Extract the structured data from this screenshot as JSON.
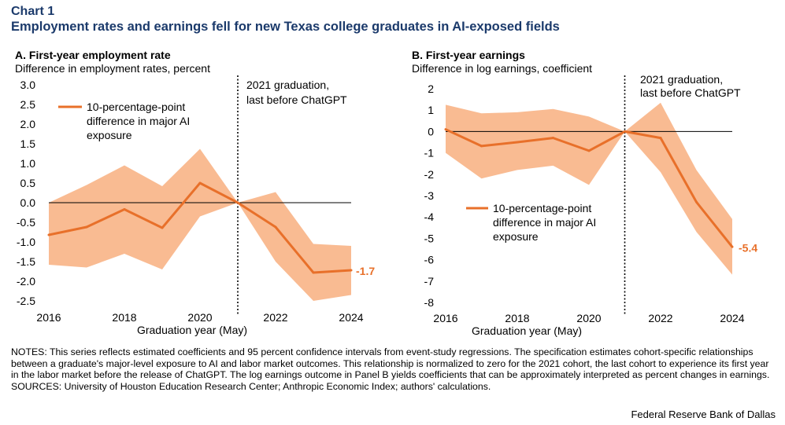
{
  "header": {
    "label": "Chart 1",
    "title": "Employment rates and earnings fell for new Texas college graduates in AI-exposed fields"
  },
  "chart_data": [
    {
      "type": "line",
      "panel_title": "A. First-year employment rate",
      "ylabel": "Difference in employment rates, percent",
      "xlabel": "Graduation year (May)",
      "x": [
        2016,
        2017,
        2018,
        2019,
        2020,
        2021,
        2022,
        2023,
        2024
      ],
      "xticks": [
        "2016",
        "2018",
        "2020",
        "2022",
        "2024"
      ],
      "yticks": [
        "3.0",
        "2.5",
        "2.0",
        "1.5",
        "1.0",
        "0.5",
        "0.0",
        "-0.5",
        "-1.0",
        "-1.5",
        "-2.0",
        "-2.5"
      ],
      "ylim": [
        -2.5,
        3.0
      ],
      "series": [
        {
          "name": "10-percentage-point difference in major AI exposure",
          "color": "#e8702a",
          "values": [
            -0.82,
            -0.62,
            -0.17,
            -0.64,
            0.5,
            0.0,
            -0.62,
            -1.78,
            -1.72
          ],
          "ci_low": [
            -1.58,
            -1.65,
            -1.3,
            -1.7,
            -0.35,
            0.0,
            -1.5,
            -2.5,
            -2.35
          ],
          "ci_high": [
            0.0,
            0.45,
            0.95,
            0.42,
            1.37,
            0.0,
            0.27,
            -1.05,
            -1.1
          ]
        }
      ],
      "band_color": "#f9bb92",
      "end_label": "-1.7",
      "vline": {
        "x": 2021,
        "label_line1": "2021 graduation,",
        "label_line2": "last before ChatGPT"
      },
      "legend": {
        "line1": "10-percentage-point",
        "line2": "difference in major AI",
        "line3": "exposure"
      }
    },
    {
      "type": "line",
      "panel_title": "B. First-year earnings",
      "ylabel": "Difference in log earnings, coefficient",
      "xlabel": "Graduation year (May)",
      "x": [
        2016,
        2017,
        2018,
        2019,
        2020,
        2021,
        2022,
        2023,
        2024
      ],
      "xticks": [
        "2016",
        "2018",
        "2020",
        "2022",
        "2024"
      ],
      "yticks": [
        "2",
        "1",
        "0",
        "-1",
        "-2",
        "-3",
        "-4",
        "-5",
        "-6",
        "-7",
        "-8"
      ],
      "ylim": [
        -8,
        2
      ],
      "series": [
        {
          "name": "10-percentage-point difference in major AI exposure",
          "color": "#e8702a",
          "values": [
            0.1,
            -0.68,
            -0.5,
            -0.3,
            -0.9,
            0.0,
            -0.3,
            -3.3,
            -5.4
          ],
          "ci_low": [
            -1.0,
            -2.2,
            -1.8,
            -1.6,
            -2.5,
            0.0,
            -1.9,
            -4.7,
            -6.7
          ],
          "ci_high": [
            1.25,
            0.85,
            0.9,
            1.05,
            0.7,
            0.0,
            1.35,
            -1.8,
            -4.1
          ]
        }
      ],
      "band_color": "#f9bb92",
      "end_label": "-5.4",
      "vline": {
        "x": 2021,
        "label_line1": "2021 graduation,",
        "label_line2": "last before ChatGPT"
      },
      "legend": {
        "line1": "10-percentage-point",
        "line2": "difference in major AI",
        "line3": "exposure"
      }
    }
  ],
  "notes": {
    "notes_label": "NOTES:",
    "notes_text": "This series reflects estimated coefficients and 95 percent confidence intervals from event-study regressions. The specification estimates cohort-specific relationships between a graduate's major-level exposure to AI and labor market outcomes. This relationship is normalized to zero for the 2021 cohort, the last cohort to experience its first year in the labor market before the release of ChatGPT. The log earnings outcome in Panel B yields coefficients that can be approximately interpreted as percent changes in earnings.",
    "sources_label": "SOURCES:",
    "sources_text": "University of Houston Education Research Center; Anthropic Economic Index; authors' calculations."
  },
  "credit": "Federal Reserve Bank of Dallas"
}
